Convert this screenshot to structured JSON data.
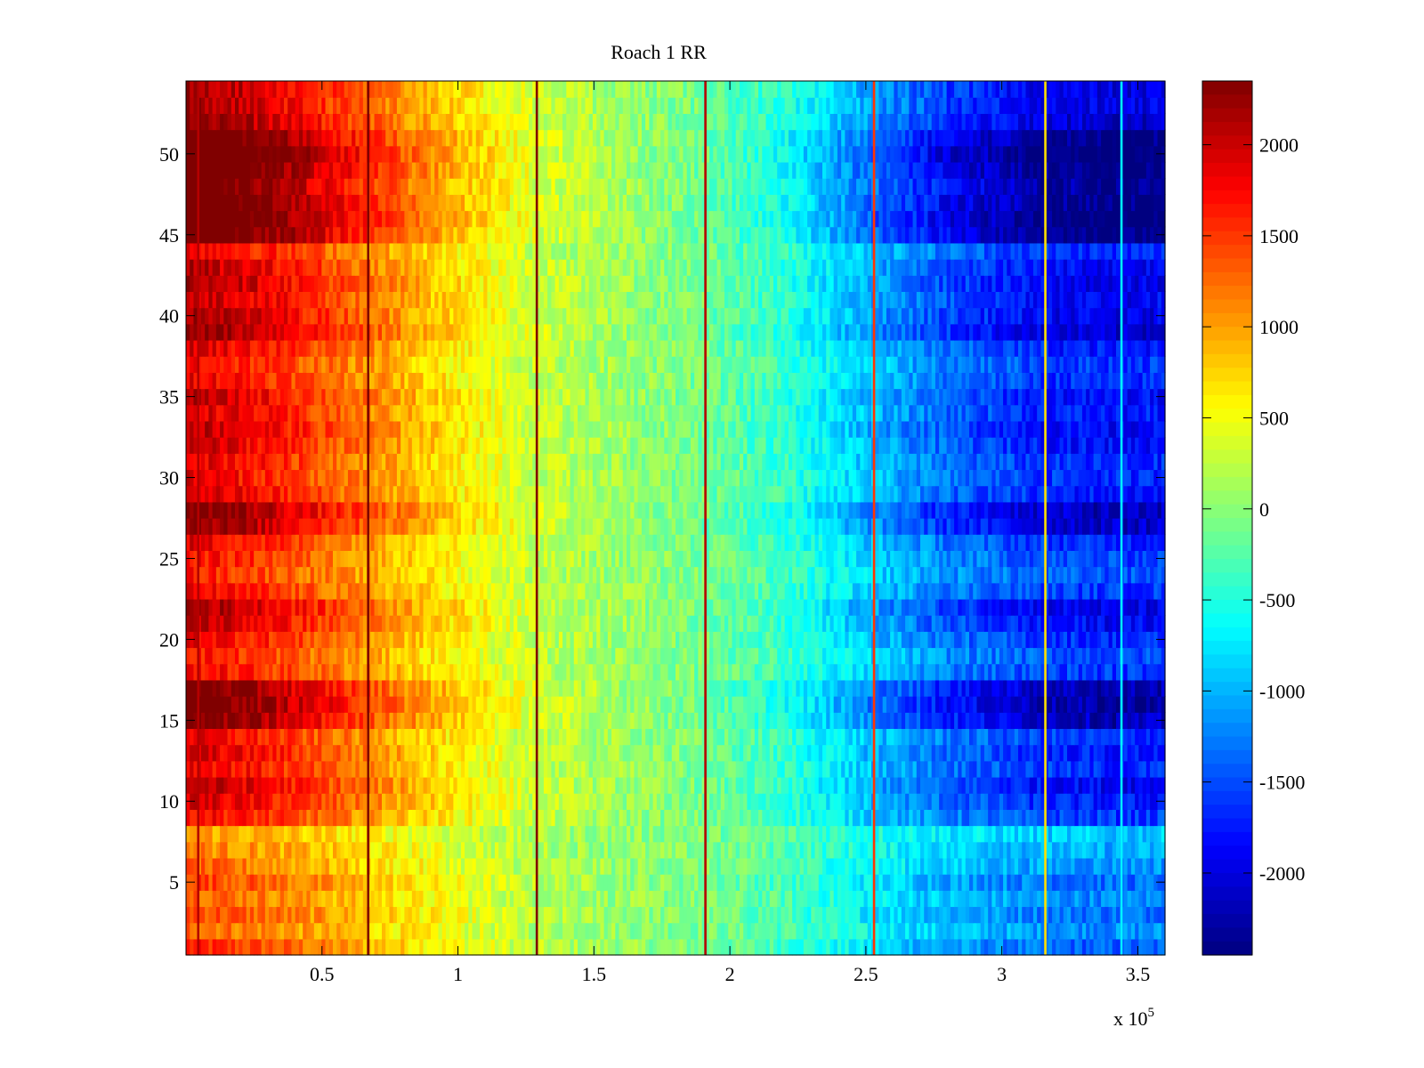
{
  "figure": {
    "background": "#ffffff"
  },
  "chart_data": {
    "type": "heatmap",
    "title": "Roach 1 RR",
    "xlabel": "",
    "ylabel": "",
    "colormap": "jet",
    "x_multiplier_label": "x 10",
    "x_multiplier_exponent": "5",
    "xlim": [
      0,
      360000
    ],
    "ylim": [
      0.5,
      54.5
    ],
    "x_ticks": [
      50000,
      100000,
      150000,
      200000,
      250000,
      300000,
      350000
    ],
    "x_tick_labels": [
      "0.5",
      "1",
      "1.5",
      "2",
      "2.5",
      "3",
      "3.5"
    ],
    "y_ticks": [
      5,
      10,
      15,
      20,
      25,
      30,
      35,
      40,
      45,
      50
    ],
    "y_tick_labels": [
      "5",
      "10",
      "15",
      "20",
      "25",
      "30",
      "35",
      "40",
      "45",
      "50"
    ],
    "clim": [
      -2450,
      2350
    ],
    "colorbar_ticks": [
      2000,
      1500,
      1000,
      500,
      0,
      -500,
      -1000,
      -1500,
      -2000
    ],
    "colorbar_tick_labels": [
      "2000",
      "1500",
      "1000",
      "500",
      "0",
      "-500",
      "-1000",
      "-1500",
      "-2000"
    ],
    "gradient_profile": {
      "x": [
        0,
        30000,
        65000,
        100000,
        130000,
        160000,
        190000,
        220000,
        250000,
        280000,
        315000,
        345000,
        360000
      ],
      "value_mid_channel": [
        1900,
        1600,
        1100,
        600,
        250,
        80,
        -100,
        -400,
        -900,
        -1300,
        -1600,
        -1700,
        -1650
      ]
    },
    "rows": [
      {
        "channel": 1,
        "amplitude": 0.85
      },
      {
        "channel": 2,
        "amplitude": 0.7
      },
      {
        "channel": 3,
        "amplitude": 0.78
      },
      {
        "channel": 4,
        "amplitude": 0.72
      },
      {
        "channel": 5,
        "amplitude": 0.8
      },
      {
        "channel": 6,
        "amplitude": 0.68
      },
      {
        "channel": 7,
        "amplitude": 0.62
      },
      {
        "channel": 8,
        "amplitude": 0.55
      },
      {
        "channel": 9,
        "amplitude": 0.95
      },
      {
        "channel": 10,
        "amplitude": 1.05
      },
      {
        "channel": 11,
        "amplitude": 1.12
      },
      {
        "channel": 12,
        "amplitude": 1.0
      },
      {
        "channel": 13,
        "amplitude": 1.05
      },
      {
        "channel": 14,
        "amplitude": 0.98
      },
      {
        "channel": 15,
        "amplitude": 1.3
      },
      {
        "channel": 16,
        "amplitude": 1.38
      },
      {
        "channel": 17,
        "amplitude": 1.32
      },
      {
        "channel": 18,
        "amplitude": 0.95
      },
      {
        "channel": 19,
        "amplitude": 0.9
      },
      {
        "channel": 20,
        "amplitude": 1.0
      },
      {
        "channel": 21,
        "amplitude": 1.12
      },
      {
        "channel": 22,
        "amplitude": 1.18
      },
      {
        "channel": 23,
        "amplitude": 0.95
      },
      {
        "channel": 24,
        "amplitude": 0.88
      },
      {
        "channel": 25,
        "amplitude": 0.92
      },
      {
        "channel": 26,
        "amplitude": 1.0
      },
      {
        "channel": 27,
        "amplitude": 1.25
      },
      {
        "channel": 28,
        "amplitude": 1.3
      },
      {
        "channel": 29,
        "amplitude": 1.05
      },
      {
        "channel": 30,
        "amplitude": 1.0
      },
      {
        "channel": 31,
        "amplitude": 1.02
      },
      {
        "channel": 32,
        "amplitude": 1.08
      },
      {
        "channel": 33,
        "amplitude": 1.12
      },
      {
        "channel": 34,
        "amplitude": 1.05
      },
      {
        "channel": 35,
        "amplitude": 1.1
      },
      {
        "channel": 36,
        "amplitude": 1.0
      },
      {
        "channel": 37,
        "amplitude": 0.95
      },
      {
        "channel": 38,
        "amplitude": 1.05
      },
      {
        "channel": 39,
        "amplitude": 1.25
      },
      {
        "channel": 40,
        "amplitude": 1.18
      },
      {
        "channel": 41,
        "amplitude": 1.12
      },
      {
        "channel": 42,
        "amplitude": 1.18
      },
      {
        "channel": 43,
        "amplitude": 1.12
      },
      {
        "channel": 44,
        "amplitude": 1.0
      },
      {
        "channel": 45,
        "amplitude": 1.45
      },
      {
        "channel": 46,
        "amplitude": 1.5
      },
      {
        "channel": 47,
        "amplitude": 1.45
      },
      {
        "channel": 48,
        "amplitude": 1.4
      },
      {
        "channel": 49,
        "amplitude": 1.48
      },
      {
        "channel": 50,
        "amplitude": 1.55
      },
      {
        "channel": 51,
        "amplitude": 1.45
      },
      {
        "channel": 52,
        "amplitude": 1.25
      },
      {
        "channel": 53,
        "amplitude": 1.18
      },
      {
        "channel": 54,
        "amplitude": 1.2
      }
    ],
    "vertical_lines": [
      {
        "x": 4500,
        "value": 2100
      },
      {
        "x": 67000,
        "value": 2350
      },
      {
        "x": 129000,
        "value": 2350
      },
      {
        "x": 191000,
        "value": 2100
      },
      {
        "x": 253000,
        "value": 1500
      },
      {
        "x": 316000,
        "value": 700
      },
      {
        "x": 344000,
        "value": -700
      }
    ]
  }
}
